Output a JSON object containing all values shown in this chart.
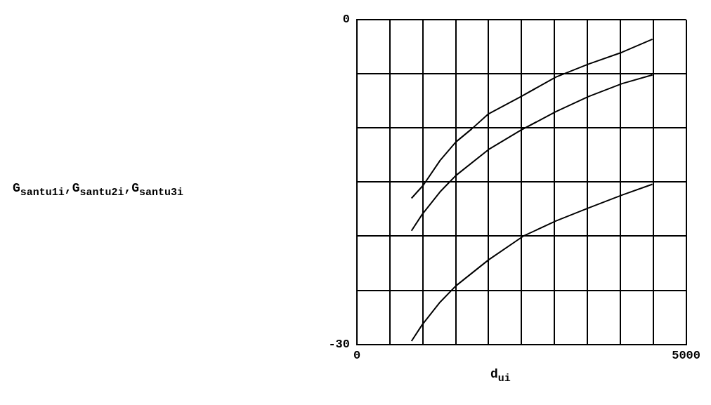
{
  "chart_data": {
    "type": "line",
    "xlabel": "d$_{u}$$_{i}$",
    "ylabel": "G$_{santu1}$$_{i}$,G$_{santu2}$$_{i}$,G$_{santu3}$$_{i}$",
    "xlim": [
      0,
      5000
    ],
    "ylim": [
      -30,
      0
    ],
    "xticks": [
      0,
      {
        "value": 500,
        "label": null
      },
      {
        "value": 1000,
        "label": null
      },
      {
        "value": 1500,
        "label": null
      },
      {
        "value": 2000,
        "label": null
      },
      {
        "value": 2500,
        "label": null
      },
      {
        "value": 3000,
        "label": null
      },
      {
        "value": 3500,
        "label": null
      },
      {
        "value": 4000,
        "label": null
      },
      {
        "value": 4500,
        "label": null
      },
      5000
    ],
    "yticks": [
      -30,
      {
        "value": -25,
        "label": null
      },
      {
        "value": -20,
        "label": null
      },
      {
        "value": -15,
        "label": null
      },
      {
        "value": -10,
        "label": null
      },
      {
        "value": -5,
        "label": null
      },
      0
    ],
    "grid": true,
    "legend": false,
    "marker": "none",
    "line_style": "solid",
    "series": [
      {
        "color": "#000000",
        "x": [
          829,
          1007,
          1263,
          1502,
          1741,
          1997,
          2491,
          3020,
          3515,
          4027,
          4488
        ],
        "values": [
          -16.5,
          -15.3,
          -13.0,
          -11.3,
          -10.1,
          -8.7,
          -7.1,
          -5.3,
          -4.1,
          -3.0,
          -1.8
        ]
      },
      {
        "color": "#000000",
        "x": [
          829,
          990,
          1263,
          1502,
          1997,
          2491,
          3020,
          3515,
          4027,
          4488
        ],
        "values": [
          -19.5,
          -18.0,
          -15.9,
          -14.4,
          -12.0,
          -10.2,
          -8.5,
          -7.1,
          -5.9,
          -5.1
        ]
      },
      {
        "color": "#000000",
        "x": [
          829,
          990,
          1263,
          1502,
          1997,
          2526,
          3020,
          3515,
          4027,
          4488
        ],
        "values": [
          -29.7,
          -28.2,
          -26.1,
          -24.6,
          -22.2,
          -20.0,
          -18.6,
          -17.4,
          -16.2,
          -15.2
        ]
      }
    ]
  }
}
